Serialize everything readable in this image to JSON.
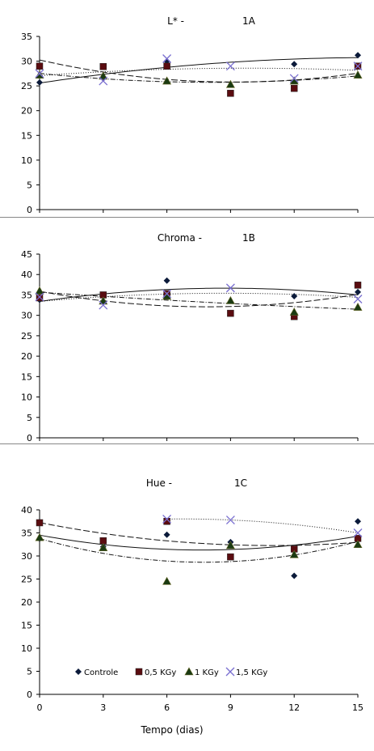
{
  "x_label": "Tempo (dias)",
  "legend": [
    {
      "label": "Controle",
      "marker": "diamond",
      "color": "#0b1a3a",
      "dash": ""
    },
    {
      "label": "0,5 KGy",
      "marker": "square",
      "color": "#5a0c10",
      "dash": "8,3"
    },
    {
      "label": "1 KGy",
      "marker": "triangle",
      "color": "#1a3a12",
      "dash": "6,2,1,2"
    },
    {
      "label": "1,5 KGy",
      "marker": "cross",
      "color": "#7a6fd0",
      "dash": "1,2"
    }
  ],
  "chart_data": [
    {
      "type": "scatter",
      "title": "L* -",
      "panel_label": "1A",
      "x": [
        0,
        3,
        6,
        9,
        12,
        15
      ],
      "xlim": [
        0,
        15
      ],
      "ylim": [
        0,
        35
      ],
      "y_ticks": [
        0,
        5,
        10,
        15,
        20,
        25,
        30,
        35
      ],
      "trendlines": "polynomial",
      "series": [
        {
          "name": "Controle",
          "values": [
            25.7,
            26.5,
            30,
            null,
            29.4,
            31.2
          ]
        },
        {
          "name": "0,5 KGy",
          "values": [
            29,
            28.9,
            29,
            23.5,
            24.5,
            29
          ]
        },
        {
          "name": "1 KGy",
          "values": [
            27.2,
            27,
            26,
            25.3,
            26,
            27.2
          ]
        },
        {
          "name": "1,5 KGy",
          "values": [
            27.5,
            26,
            30.5,
            29,
            26.5,
            29
          ]
        }
      ]
    },
    {
      "type": "scatter",
      "title": "Chroma -",
      "panel_label": "1B",
      "x": [
        0,
        3,
        6,
        9,
        12,
        15
      ],
      "xlim": [
        0,
        15
      ],
      "ylim": [
        0,
        45
      ],
      "y_ticks": [
        0,
        5,
        10,
        15,
        20,
        25,
        30,
        35,
        40,
        45
      ],
      "trendlines": "polynomial",
      "series": [
        {
          "name": "Controle",
          "values": [
            33.8,
            33.5,
            38.5,
            null,
            34.7,
            35.7
          ]
        },
        {
          "name": "0,5 KGy",
          "values": [
            34.3,
            35,
            35.3,
            30.5,
            29.7,
            37.4
          ]
        },
        {
          "name": "1 KGy",
          "values": [
            36,
            33.5,
            34.7,
            33.6,
            30.8,
            32
          ]
        },
        {
          "name": "1,5 KGy",
          "values": [
            34.5,
            32.5,
            35.3,
            36.7,
            null,
            34
          ]
        }
      ]
    },
    {
      "type": "scatter",
      "title": "Hue -",
      "panel_label": "1C",
      "x": [
        0,
        3,
        6,
        9,
        12,
        15
      ],
      "xlim": [
        0,
        15
      ],
      "ylim": [
        0,
        40
      ],
      "y_ticks": [
        0,
        5,
        10,
        15,
        20,
        25,
        30,
        35,
        40
      ],
      "x_ticks": [
        0,
        3,
        6,
        9,
        12,
        15
      ],
      "trendlines": "polynomial",
      "series": [
        {
          "name": "Controle",
          "values": [
            33.7,
            32,
            34.6,
            33,
            25.7,
            37.5
          ]
        },
        {
          "name": "0,5 KGy",
          "values": [
            37.2,
            33.3,
            37.5,
            29.8,
            31.5,
            33.8
          ]
        },
        {
          "name": "1 KGy",
          "values": [
            34,
            31.8,
            24.5,
            32.3,
            30.3,
            32.5
          ]
        },
        {
          "name": "1,5 KGy",
          "values": [
            null,
            null,
            38,
            37.8,
            null,
            35
          ]
        }
      ]
    }
  ]
}
